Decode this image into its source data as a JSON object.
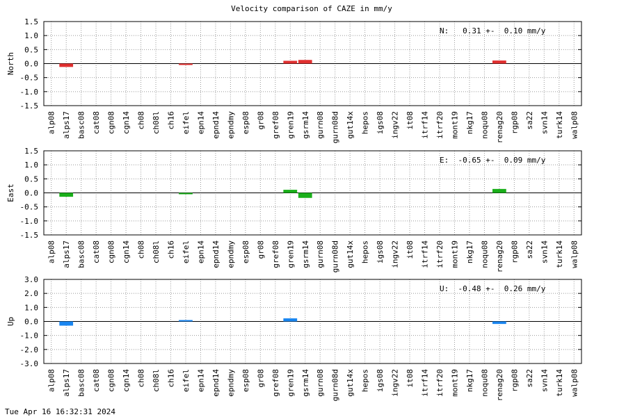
{
  "chart_data": {
    "type": "bar",
    "title": "Velocity comparison of CAZE in mm/y",
    "categories": [
      "alp08",
      "alps17",
      "basc08",
      "cat08",
      "cgn08",
      "cgn14",
      "ch08",
      "ch08l",
      "ch16",
      "eifel",
      "epn14",
      "epnd14",
      "epndmy",
      "esp08",
      "gr08",
      "gref08",
      "gren19",
      "gsrm14",
      "gurn08",
      "gurn08d",
      "gut14x",
      "hepos",
      "igs08",
      "ingv22",
      "it08",
      "itrf14",
      "itrf20",
      "mont19",
      "nkg17",
      "noqu08",
      "renag20",
      "rgp08",
      "sa22",
      "svn14",
      "turk14",
      "walp08"
    ],
    "grid": true,
    "panels": [
      {
        "ylabel": "North",
        "ylim": [
          -1.5,
          1.5
        ],
        "yticks": [
          "1.5",
          "1.0",
          "0.5",
          "0.0",
          "-0.5",
          "-1.0",
          "-1.5"
        ],
        "color": "#e03030",
        "annotation": "N:   0.31 +-  0.10 mm/y",
        "bars": [
          {
            "category": "alps17",
            "value": -0.12
          },
          {
            "category": "eifel",
            "value": -0.04
          },
          {
            "category": "gren19",
            "value": 0.1
          },
          {
            "category": "gsrm14",
            "value": 0.13
          },
          {
            "category": "renag20",
            "value": 0.11
          }
        ]
      },
      {
        "ylabel": "East",
        "ylim": [
          -1.5,
          1.5
        ],
        "yticks": [
          "1.5",
          "1.0",
          "0.5",
          "0.0",
          "-0.5",
          "-1.0",
          "-1.5"
        ],
        "color": "#1aaf1a",
        "annotation": "E:  -0.65 +-  0.09 mm/y",
        "bars": [
          {
            "category": "alps17",
            "value": -0.14
          },
          {
            "category": "eifel",
            "value": -0.03
          },
          {
            "category": "gren19",
            "value": 0.11
          },
          {
            "category": "gsrm14",
            "value": -0.18
          },
          {
            "category": "renag20",
            "value": 0.14
          }
        ]
      },
      {
        "ylabel": "Up",
        "ylim": [
          -3.0,
          3.0
        ],
        "yticks": [
          "3.0",
          "2.0",
          "1.0",
          "0.0",
          "-1.0",
          "-2.0",
          "-3.0"
        ],
        "color": "#1a86f0",
        "annotation": "U:  -0.48 +-  0.26 mm/y",
        "bars": [
          {
            "category": "alps17",
            "value": -0.3
          },
          {
            "category": "eifel",
            "value": 0.05
          },
          {
            "category": "gren19",
            "value": 0.22
          },
          {
            "category": "renag20",
            "value": -0.18
          }
        ]
      }
    ]
  },
  "footer": {
    "timestamp": "Tue Apr 16 16:32:31 2024"
  }
}
